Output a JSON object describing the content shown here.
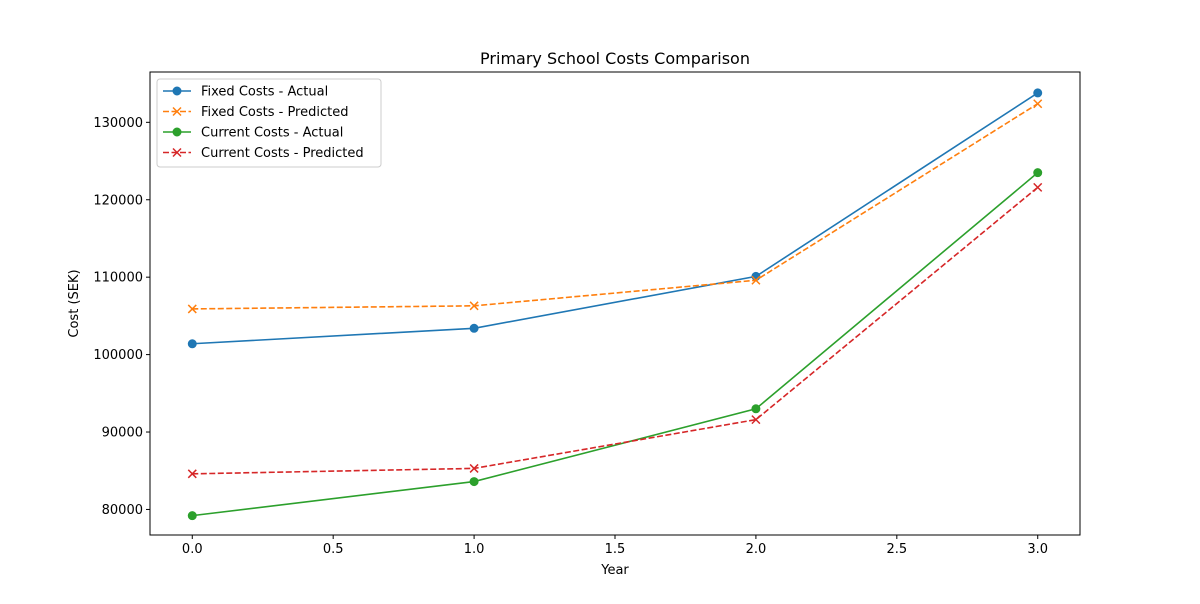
{
  "chart_data": {
    "type": "line",
    "title": "Primary School Costs Comparison",
    "xlabel": "Year",
    "ylabel": "Cost (SEK)",
    "x": [
      0,
      1,
      2,
      3
    ],
    "xlim": [
      -0.15,
      3.15
    ],
    "ylim": [
      76700,
      136500
    ],
    "xticks": [
      0.0,
      0.5,
      1.0,
      1.5,
      2.0,
      2.5,
      3.0
    ],
    "xtick_labels": [
      "0.0",
      "0.5",
      "1.0",
      "1.5",
      "2.0",
      "2.5",
      "3.0"
    ],
    "yticks": [
      80000,
      90000,
      100000,
      110000,
      120000,
      130000
    ],
    "ytick_labels": [
      "80000",
      "90000",
      "100000",
      "110000",
      "120000",
      "130000"
    ],
    "grid": false,
    "legend_position": "top-left",
    "series": [
      {
        "name": "Fixed Costs - Actual",
        "values": [
          101400,
          103400,
          110100,
          133800
        ],
        "color": "#1f77b4",
        "dash": "solid",
        "marker": "circle"
      },
      {
        "name": "Fixed Costs - Predicted",
        "values": [
          105900,
          106300,
          109600,
          132400
        ],
        "color": "#ff7f0e",
        "dash": "dashed",
        "marker": "x"
      },
      {
        "name": "Current Costs - Actual",
        "values": [
          79200,
          83600,
          93000,
          123500
        ],
        "color": "#2ca02c",
        "dash": "solid",
        "marker": "circle"
      },
      {
        "name": "Current Costs - Predicted",
        "values": [
          84600,
          85300,
          91600,
          121600
        ],
        "color": "#d62728",
        "dash": "dashed",
        "marker": "x"
      }
    ]
  }
}
